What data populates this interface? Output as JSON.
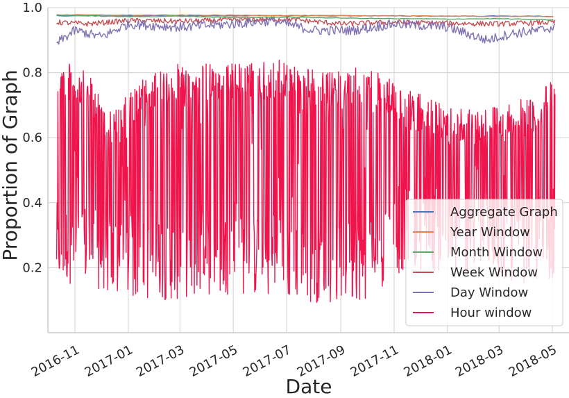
{
  "chart_data": {
    "type": "line",
    "title": "",
    "xlabel": "Date",
    "ylabel": "Proportion of Graph",
    "x_ticks": [
      "2016-11",
      "2017-01",
      "2017-03",
      "2017-05",
      "2017-07",
      "2017-09",
      "2017-11",
      "2018-01",
      "2018-03",
      "2018-05"
    ],
    "y_ticks": [
      "0.2",
      "0.4",
      "0.6",
      "0.8",
      "1.0"
    ],
    "xlim": [
      "2016-10-01",
      "2018-05-20"
    ],
    "ylim": [
      0.0,
      1.0
    ],
    "grid": true,
    "legend_position": "lower-right",
    "series": [
      {
        "name": "Aggregate Graph",
        "color": "#4c72b0",
        "style": "smooth",
        "x": [
          "2016-10-11",
          "2017-01-01",
          "2017-04-01",
          "2017-07-01",
          "2017-10-01",
          "2018-01-01",
          "2018-04-01",
          "2018-05-04"
        ],
        "y": [
          0.975,
          0.975,
          0.975,
          0.975,
          0.975,
          0.974,
          0.974,
          0.973
        ]
      },
      {
        "name": "Year Window",
        "color": "#dd8452",
        "style": "smooth",
        "x": [
          "2016-10-11",
          "2017-01-01",
          "2017-04-01",
          "2017-07-01",
          "2017-10-01",
          "2018-01-01",
          "2018-04-01",
          "2018-05-04"
        ],
        "y": [
          0.978,
          0.977,
          0.977,
          0.976,
          0.975,
          0.974,
          0.973,
          0.972
        ]
      },
      {
        "name": "Month Window",
        "color": "#55a868",
        "style": "smooth",
        "x": [
          "2016-10-11",
          "2016-11-15",
          "2017-01-01",
          "2017-03-01",
          "2017-05-01",
          "2017-07-01",
          "2017-09-01",
          "2017-11-01",
          "2018-01-01",
          "2018-03-01",
          "2018-05-04"
        ],
        "y": [
          0.978,
          0.975,
          0.972,
          0.974,
          0.969,
          0.971,
          0.968,
          0.966,
          0.965,
          0.966,
          0.962
        ]
      },
      {
        "name": "Week Window",
        "color": "#c44e52",
        "style": "noisy",
        "amplitude": 0.008,
        "x": [
          "2016-10-11",
          "2016-11-15",
          "2017-01-01",
          "2017-03-01",
          "2017-05-01",
          "2017-07-01",
          "2017-09-01",
          "2017-11-01",
          "2018-01-01",
          "2018-03-01",
          "2018-05-04"
        ],
        "y": [
          0.955,
          0.95,
          0.96,
          0.958,
          0.962,
          0.965,
          0.95,
          0.955,
          0.952,
          0.95,
          0.955
        ]
      },
      {
        "name": "Day Window",
        "color": "#8172b3",
        "style": "noisy",
        "amplitude": 0.015,
        "x": [
          "2016-10-11",
          "2016-11-01",
          "2016-12-01",
          "2017-01-01",
          "2017-03-01",
          "2017-05-01",
          "2017-06-15",
          "2017-08-01",
          "2017-09-15",
          "2017-11-01",
          "2018-01-01",
          "2018-02-15",
          "2018-03-15",
          "2018-04-15",
          "2018-05-04"
        ],
        "y": [
          0.89,
          0.93,
          0.91,
          0.95,
          0.94,
          0.95,
          0.96,
          0.93,
          0.93,
          0.95,
          0.94,
          0.9,
          0.92,
          0.93,
          0.94
        ]
      },
      {
        "name": "Hour window",
        "color": "#f0144c",
        "style": "band",
        "x": [
          "2016-10-11",
          "2016-11-15",
          "2016-12-15",
          "2017-01-15",
          "2017-03-01",
          "2017-05-01",
          "2017-07-01",
          "2017-08-15",
          "2017-10-01",
          "2017-11-15",
          "2018-01-01",
          "2018-02-15",
          "2018-04-01",
          "2018-05-04"
        ],
        "y_min": [
          0.15,
          0.15,
          0.1,
          0.1,
          0.1,
          0.12,
          0.1,
          0.09,
          0.1,
          0.2,
          0.18,
          0.17,
          0.15,
          0.16
        ],
        "y_max": [
          0.85,
          0.8,
          0.68,
          0.78,
          0.83,
          0.83,
          0.84,
          0.8,
          0.82,
          0.75,
          0.7,
          0.7,
          0.72,
          0.78
        ]
      }
    ]
  }
}
